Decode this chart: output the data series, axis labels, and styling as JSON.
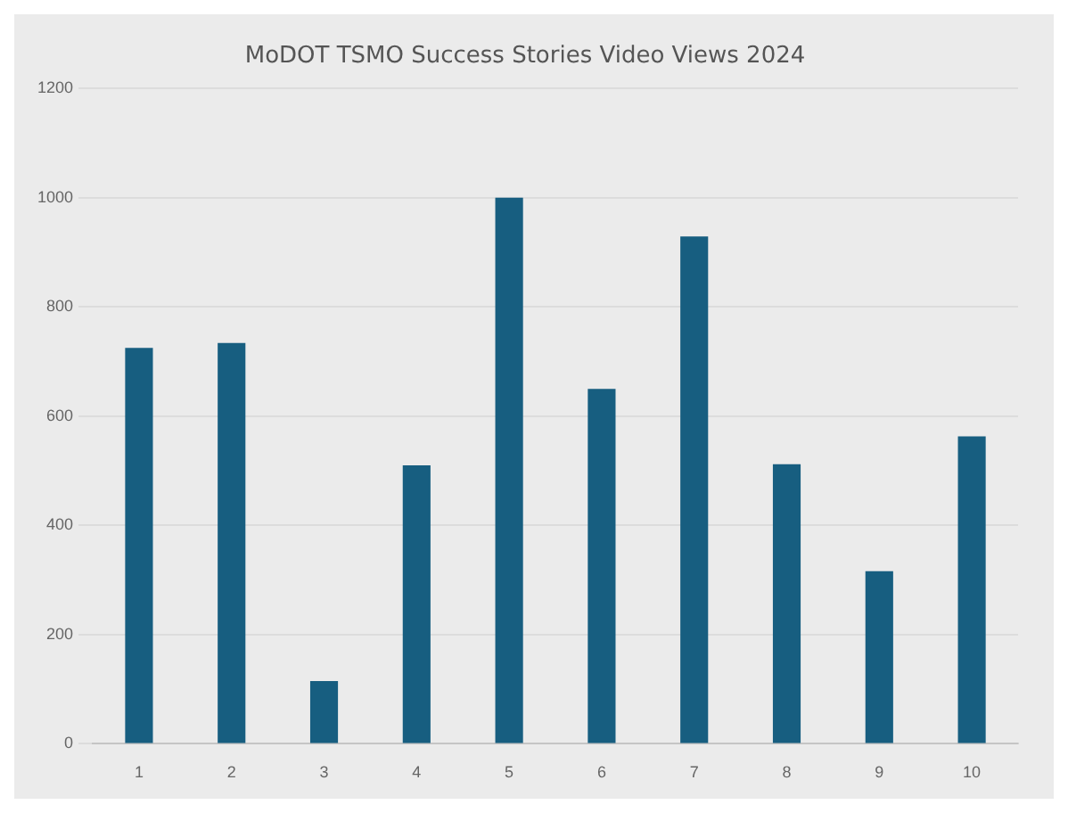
{
  "chart_data": {
    "type": "bar",
    "title": "MoDOT TSMO Success Stories Video Views 2024",
    "categories": [
      "1",
      "2",
      "3",
      "4",
      "5",
      "6",
      "7",
      "8",
      "9",
      "10"
    ],
    "values": [
      725,
      734,
      115,
      510,
      1000,
      650,
      929,
      512,
      316,
      563
    ],
    "color": "#175e80",
    "ylim": [
      0,
      1200
    ],
    "yticks": [
      0,
      200,
      400,
      600,
      800,
      1000,
      1200
    ],
    "grid": "y",
    "legend": false
  }
}
